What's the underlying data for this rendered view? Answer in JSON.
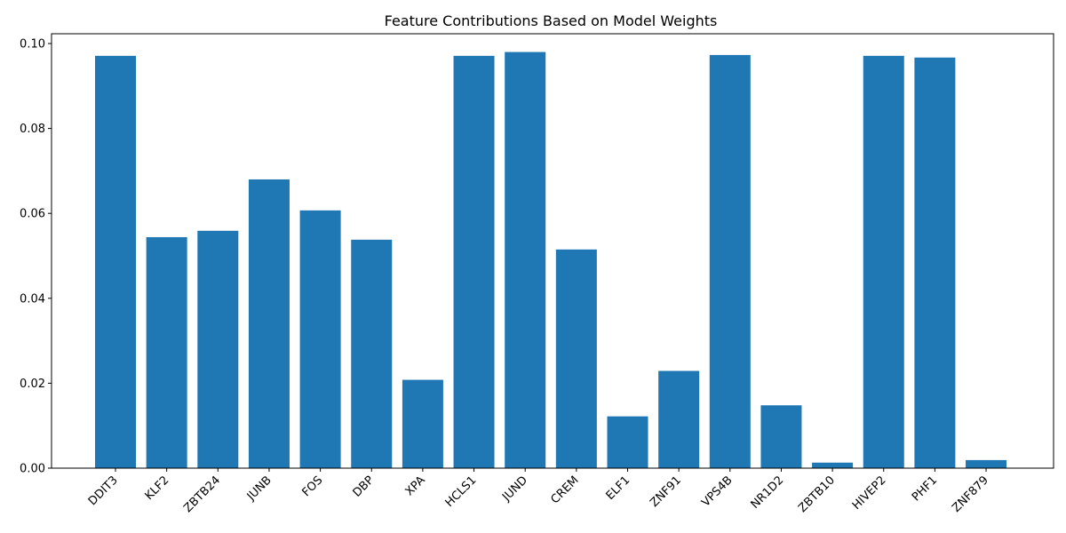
{
  "chart_data": {
    "type": "bar",
    "title": "Feature Contributions Based on Model Weights",
    "xlabel": "",
    "ylabel": "",
    "categories": [
      "DDIT3",
      "KLF2",
      "ZBTB24",
      "JUNB",
      "FOS",
      "DBP",
      "XPA",
      "HCLS1",
      "JUND",
      "CREM",
      "ELF1",
      "ZNF91",
      "VPS4B",
      "NR1D2",
      "ZBTB10",
      "HIVEP2",
      "PHF1",
      "ZNF879"
    ],
    "values": [
      0.0971,
      0.0544,
      0.0559,
      0.068,
      0.0607,
      0.0538,
      0.0208,
      0.0971,
      0.098,
      0.0515,
      0.0122,
      0.0229,
      0.0973,
      0.0148,
      0.0013,
      0.0971,
      0.0967,
      0.0019
    ],
    "ylim": [
      0,
      0.1023
    ],
    "yticks": [
      0.0,
      0.02,
      0.04,
      0.06,
      0.08,
      0.1
    ],
    "ytick_labels": [
      "0.00",
      "0.02",
      "0.04",
      "0.06",
      "0.08",
      "0.10"
    ],
    "bar_color": "#1f77b4",
    "grid": false,
    "legend": false
  }
}
